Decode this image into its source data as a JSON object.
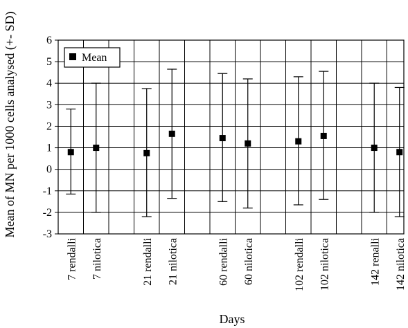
{
  "chart_data": {
    "type": "scatter",
    "title": "",
    "xlabel": "Days",
    "ylabel": "Mean of MN per 1000 cells analysed (+- SD)",
    "ylim": [
      -3,
      6
    ],
    "yticks": [
      -3,
      -2,
      -1,
      0,
      1,
      2,
      3,
      4,
      5,
      6
    ],
    "grid": true,
    "legend": {
      "position": "top-left",
      "entries": [
        {
          "label": "Mean",
          "marker": "square"
        }
      ]
    },
    "categories": [
      "7 rendalli",
      "7 nilotica",
      "21 rendalli",
      "21 nilotica",
      "60 rendalli",
      "60 nilotica",
      "102 rendalli",
      "102 nilotica",
      "142 renalli",
      "142 nilotica"
    ],
    "series": [
      {
        "name": "Mean",
        "values": [
          0.8,
          1.0,
          0.75,
          1.65,
          1.45,
          1.2,
          1.3,
          1.55,
          1.0,
          0.8
        ],
        "error_low": [
          -1.15,
          -2.0,
          -2.2,
          -1.35,
          -1.5,
          -1.8,
          -1.65,
          -1.4,
          -2.0,
          -2.2
        ],
        "error_high": [
          2.8,
          4.0,
          3.75,
          4.65,
          4.45,
          4.2,
          4.3,
          4.55,
          4.0,
          3.8
        ]
      }
    ]
  }
}
